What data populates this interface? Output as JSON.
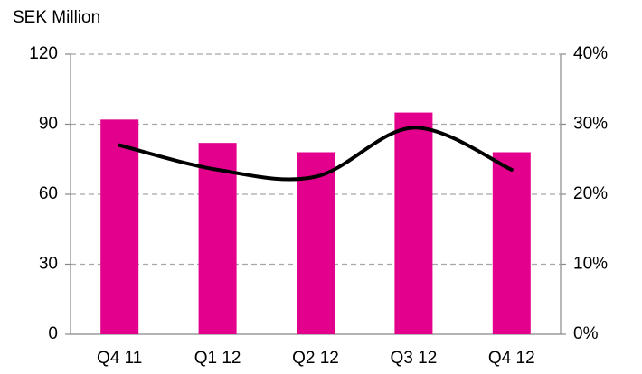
{
  "chart_data": {
    "type": "bar",
    "y_label": "SEK Million",
    "categories": [
      "Q4 11",
      "Q1 12",
      "Q2 12",
      "Q3 12",
      "Q4 12"
    ],
    "series": [
      {
        "type": "bar",
        "color": "#e3008c",
        "values": [
          92,
          82,
          78,
          95,
          78
        ]
      },
      {
        "type": "line",
        "axis": "y2",
        "color": "#000000",
        "values": [
          27,
          23.5,
          22.5,
          29.5,
          23.5
        ]
      }
    ],
    "ylim": [
      0,
      120
    ],
    "yticks": [
      0,
      30,
      60,
      90,
      120
    ],
    "y2lim": [
      0,
      40
    ],
    "y2ticks": [
      {
        "value": 0,
        "label": "0%"
      },
      {
        "value": 10,
        "label": "10%"
      },
      {
        "value": 20,
        "label": "20%"
      },
      {
        "value": 30,
        "label": "30%"
      },
      {
        "value": 40,
        "label": "40%"
      }
    ],
    "grid": true
  }
}
